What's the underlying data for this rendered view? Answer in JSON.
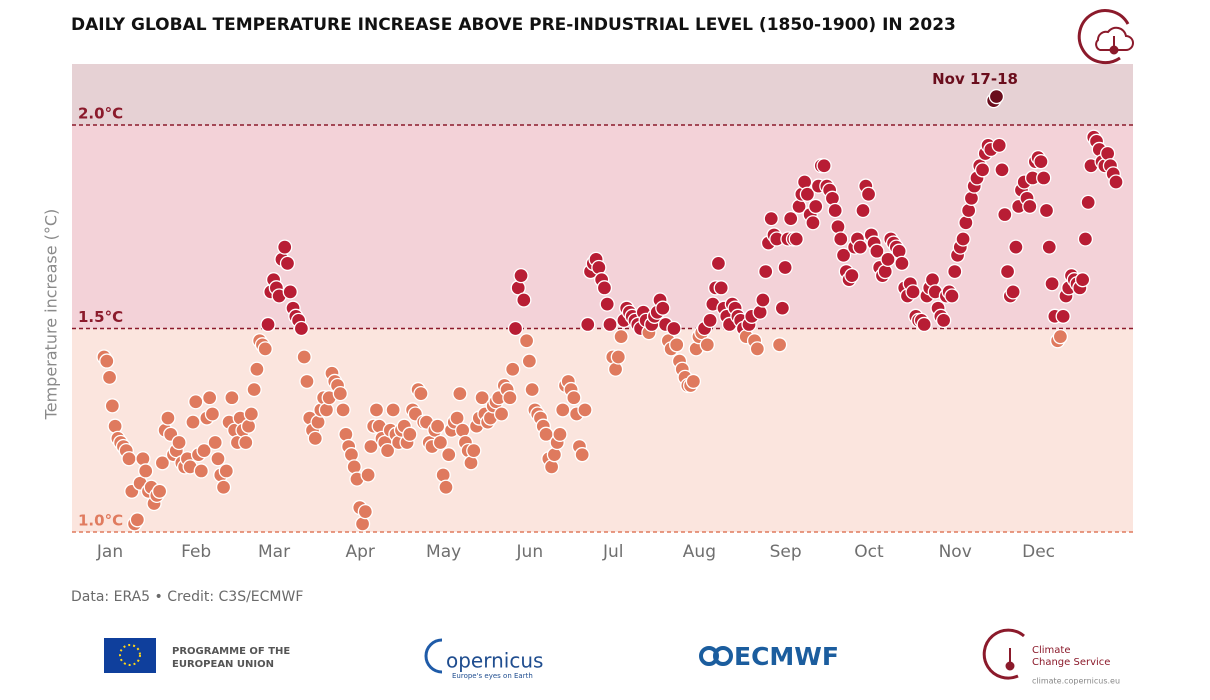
{
  "chart_data": {
    "type": "scatter",
    "title": "DAILY GLOBAL TEMPERATURE INCREASE ABOVE PRE-INDUSTRIAL LEVEL (1850-1900) IN 2023",
    "y_label": "Temperature increase (°C)",
    "source": "Data: ERA5 • Credit: C3S/ECMWF",
    "categories": [
      "Jan",
      null,
      null,
      null,
      null,
      null,
      null,
      null,
      null,
      null,
      null,
      null,
      null,
      null,
      null,
      null,
      null,
      null,
      null,
      null,
      null,
      null,
      null,
      null,
      null,
      null,
      null,
      null,
      null,
      null,
      null,
      "Feb",
      null,
      null,
      null,
      null,
      null,
      null,
      null,
      null,
      null,
      null,
      null,
      null,
      null,
      null,
      null,
      null,
      null,
      null,
      null,
      null,
      null,
      null,
      null,
      null,
      null,
      null,
      null,
      "Mar",
      null,
      null,
      null,
      null,
      null,
      null,
      null,
      null,
      null,
      null,
      null,
      null,
      null,
      null,
      null,
      null,
      null,
      null,
      null,
      null,
      null,
      null,
      null,
      null,
      null,
      null,
      null,
      null,
      null,
      null,
      "Apr",
      null,
      null,
      null,
      null,
      null,
      null,
      null,
      null,
      null,
      null,
      null,
      null,
      null,
      null,
      null,
      null,
      null,
      null,
      null,
      null,
      null,
      null,
      null,
      null,
      null,
      null,
      null,
      null,
      null,
      "May",
      null,
      null,
      null,
      null,
      null,
      null,
      null,
      null,
      null,
      null,
      null,
      null,
      null,
      null,
      null,
      null,
      null,
      null,
      null,
      null,
      null,
      null,
      null,
      null,
      null,
      null,
      null,
      null,
      null,
      null,
      "Jun",
      null,
      null,
      null,
      null,
      null,
      null,
      null,
      null,
      null,
      null,
      null,
      null,
      null,
      null,
      null,
      null,
      null,
      null,
      null,
      null,
      null,
      null,
      null,
      null,
      null,
      null,
      null,
      null,
      null,
      "Jul",
      null,
      null,
      null,
      null,
      null,
      null,
      null,
      null,
      null,
      null,
      null,
      null,
      null,
      null,
      null,
      null,
      null,
      null,
      null,
      null,
      null,
      null,
      null,
      null,
      null,
      null,
      null,
      null,
      null,
      null,
      "Aug",
      null,
      null,
      null,
      null,
      null,
      null,
      null,
      null,
      null,
      null,
      null,
      null,
      null,
      null,
      null,
      null,
      null,
      null,
      null,
      null,
      null,
      null,
      null,
      null,
      null,
      null,
      null,
      null,
      null,
      null,
      "Sep",
      null,
      null,
      null,
      null,
      null,
      null,
      null,
      null,
      null,
      null,
      null,
      null,
      null,
      null,
      null,
      null,
      null,
      null,
      null,
      null,
      null,
      null,
      null,
      null,
      null,
      null,
      null,
      null,
      null,
      "Oct",
      null,
      null,
      null,
      null,
      null,
      null,
      null,
      null,
      null,
      null,
      null,
      null,
      null,
      null,
      null,
      null,
      null,
      null,
      null,
      null,
      null,
      null,
      null,
      null,
      null,
      null,
      null,
      null,
      null,
      null,
      "Nov",
      null,
      null,
      null,
      null,
      null,
      null,
      null,
      null,
      null,
      null,
      null,
      null,
      null,
      null,
      null,
      null,
      null,
      null,
      null,
      null,
      null,
      null,
      null,
      null,
      null,
      null,
      null,
      null,
      null,
      "Dec",
      null,
      null,
      null,
      null,
      null,
      null,
      null,
      null,
      null,
      null,
      null,
      null,
      null,
      null,
      null,
      null,
      null,
      null,
      null,
      null,
      null,
      null,
      null,
      null,
      null,
      null,
      null,
      null,
      null,
      null
    ],
    "values": [
      1.43,
      1.42,
      1.38,
      1.31,
      1.26,
      1.23,
      1.22,
      1.21,
      1.2,
      1.18,
      1.1,
      1.02,
      1.03,
      1.12,
      1.18,
      1.15,
      1.1,
      1.11,
      1.07,
      1.09,
      1.1,
      1.17,
      1.25,
      1.28,
      1.24,
      1.19,
      1.2,
      1.22,
      1.17,
      1.16,
      1.18,
      1.16,
      1.27,
      1.32,
      1.19,
      1.15,
      1.2,
      1.28,
      1.33,
      1.29,
      1.22,
      1.18,
      1.14,
      1.11,
      1.15,
      1.27,
      1.33,
      1.25,
      1.22,
      1.28,
      1.25,
      1.22,
      1.26,
      1.29,
      1.35,
      1.4,
      1.47,
      1.46,
      1.45,
      1.51,
      1.59,
      1.62,
      1.6,
      1.58,
      1.67,
      1.7,
      1.66,
      1.59,
      1.55,
      1.53,
      1.52,
      1.5,
      1.43,
      1.37,
      1.28,
      1.25,
      1.23,
      1.27,
      1.3,
      1.33,
      1.3,
      1.33,
      1.39,
      1.37,
      1.36,
      1.34,
      1.3,
      1.24,
      1.21,
      1.19,
      1.16,
      1.13,
      1.06,
      1.02,
      1.05,
      1.14,
      1.21,
      1.26,
      1.3,
      1.26,
      1.23,
      1.22,
      1.2,
      1.25,
      1.3,
      1.24,
      1.22,
      1.25,
      1.26,
      1.22,
      1.24,
      1.3,
      1.29,
      1.35,
      1.34,
      1.27,
      1.27,
      1.22,
      1.21,
      1.25,
      1.26,
      1.22,
      1.14,
      1.11,
      1.19,
      1.25,
      1.27,
      1.28,
      1.34,
      1.25,
      1.22,
      1.2,
      1.17,
      1.2,
      1.26,
      1.28,
      1.33,
      1.29,
      1.27,
      1.28,
      1.31,
      1.32,
      1.33,
      1.29,
      1.36,
      1.35,
      1.33,
      1.4,
      1.5,
      1.6,
      1.63,
      1.57,
      1.47,
      1.42,
      1.35,
      1.3,
      1.29,
      1.28,
      1.26,
      1.24,
      1.18,
      1.16,
      1.19,
      1.22,
      1.24,
      1.3,
      1.36,
      1.37,
      1.35,
      1.33,
      1.29,
      1.21,
      1.19,
      1.3,
      1.51,
      1.64,
      1.66,
      1.67,
      1.65,
      1.62,
      1.6,
      1.56,
      1.51,
      1.43,
      1.4,
      1.43,
      1.48,
      1.52,
      1.55,
      1.54,
      1.53,
      1.52,
      1.51,
      1.5,
      1.54,
      1.52,
      1.49,
      1.51,
      1.53,
      1.54,
      1.57,
      1.55,
      1.51,
      1.47,
      1.45,
      1.5,
      1.46,
      1.42,
      1.4,
      1.38,
      1.36,
      1.36,
      1.37,
      1.45,
      1.48,
      1.49,
      1.5,
      1.46,
      1.52,
      1.56,
      1.6,
      1.66,
      1.6,
      1.55,
      1.53,
      1.51,
      1.56,
      1.55,
      1.53,
      1.52,
      1.5,
      1.48,
      1.51,
      1.53,
      1.47,
      1.45,
      1.54,
      1.57,
      1.64,
      1.71,
      1.77,
      1.73,
      1.72,
      1.46,
      1.55,
      1.65,
      1.72,
      1.77,
      1.72,
      1.72,
      1.8,
      1.83,
      1.86,
      1.83,
      1.78,
      1.76,
      1.8,
      1.85,
      1.9,
      1.9,
      1.85,
      1.84,
      1.82,
      1.79,
      1.75,
      1.72,
      1.68,
      1.64,
      1.62,
      1.63,
      1.7,
      1.72,
      1.7,
      1.79,
      1.85,
      1.83,
      1.73,
      1.71,
      1.69,
      1.65,
      1.63,
      1.64,
      1.67,
      1.72,
      1.71,
      1.7,
      1.69,
      1.66,
      1.6,
      1.58,
      1.61,
      1.59,
      1.53,
      1.52,
      1.52,
      1.51,
      1.58,
      1.6,
      1.62,
      1.59,
      1.55,
      1.53,
      1.52,
      1.58,
      1.59,
      1.58,
      1.64,
      1.68,
      1.7,
      1.72,
      1.76,
      1.79,
      1.82,
      1.85,
      1.87,
      1.9,
      1.89,
      1.93,
      1.95,
      1.94,
      2.06,
      2.07,
      1.95,
      1.89,
      1.78,
      1.64,
      1.58,
      1.59,
      1.7,
      1.8,
      1.84,
      1.86,
      1.82,
      1.8,
      1.87,
      1.91,
      1.92,
      1.91,
      1.87,
      1.79,
      1.7,
      1.61,
      1.53,
      1.47,
      1.48,
      1.53,
      1.58,
      1.6,
      1.63,
      1.62,
      1.61,
      1.6,
      1.62,
      1.72,
      1.81,
      1.9,
      1.97,
      1.96,
      1.94,
      1.91,
      1.9,
      1.93,
      1.9,
      1.88,
      1.86
    ],
    "ylim": [
      1.0,
      2.15
    ],
    "yticks": [
      {
        "value": 1.0,
        "label": "1.0°C"
      },
      {
        "value": 1.5,
        "label": "1.5°C"
      },
      {
        "value": 2.0,
        "label": "2.0°C"
      }
    ],
    "tick_colors": [
      "#e07b5f",
      "#8b1a2b",
      "#8b1a2b"
    ],
    "band_colors": [
      "#fbe5de",
      "#f3d2d8",
      "#e6d1d4"
    ],
    "colors": {
      "below": "#df7a5e",
      "above": "#b81d34",
      "highlight": "#6a0d1c"
    },
    "annotation": {
      "text": "Nov 17-18",
      "points": [
        320,
        321
      ]
    }
  },
  "footer": {
    "eu": [
      "PROGRAMME OF THE",
      "EUROPEAN UNION"
    ],
    "copernicus": "opernicus",
    "copernicus_tag": "Europe's eyes on Earth",
    "ecmwf": "ECMWF",
    "c3s": [
      "Climate",
      "Change Service"
    ],
    "c3s_url": "climate.copernicus.eu"
  }
}
